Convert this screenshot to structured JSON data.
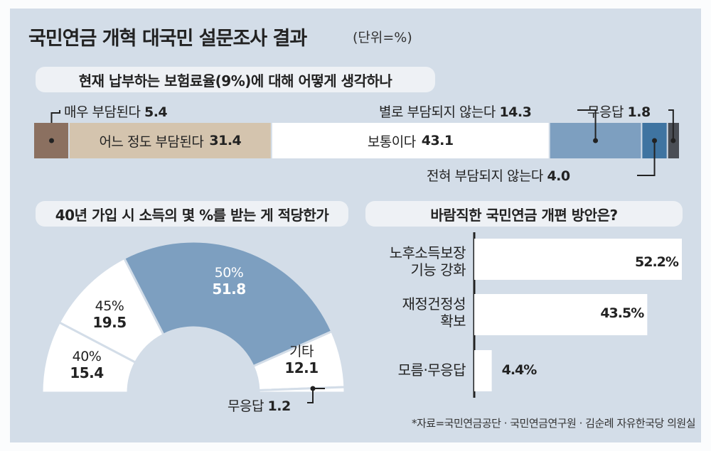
{
  "title": "국민연금 개혁 대국민 설문조사 결과",
  "unit": "(단위=%)",
  "source": "*자료=국민연금공단 · 국민연금연구원 · 김순례 자유한국당 의원실",
  "colors": {
    "panel_bg": "#d3dde8",
    "very_burden": "#8b7060",
    "somewhat_burden": "#d4c4ae",
    "normal": "#ffffff",
    "not_much": "#7d9fc0",
    "not_at_all": "#3f74a1",
    "no_answer": "#4a4e55",
    "donut_highlight": "#7d9fc0",
    "donut_base": "#ffffff"
  },
  "chart_data": [
    {
      "type": "bar",
      "orientation": "horizontal-stacked",
      "title": "현재 납부하는 보험료율(9%)에 대해 어떻게 생각하나",
      "segments": [
        {
          "label": "매우 부담된다",
          "value": 5.4,
          "value_text": "5.4"
        },
        {
          "label": "어느 정도 부담된다",
          "value": 31.4,
          "value_text": "31.4"
        },
        {
          "label": "보통이다",
          "value": 43.1,
          "value_text": "43.1"
        },
        {
          "label": "별로 부담되지 않는다",
          "value": 14.3,
          "value_text": "14.3"
        },
        {
          "label": "전혀 부담되지 않는다",
          "value": 4.0,
          "value_text": "4.0"
        },
        {
          "label": "무응답",
          "value": 1.8,
          "value_text": "1.8"
        }
      ]
    },
    {
      "type": "pie",
      "style": "half-donut",
      "title": "40년 가입 시 소득의 몇 %를 받는 게 적당한가",
      "slices": [
        {
          "label": "40%",
          "value": 15.4,
          "value_text": "15.4"
        },
        {
          "label": "45%",
          "value": 19.5,
          "value_text": "19.5"
        },
        {
          "label": "50%",
          "value": 51.8,
          "value_text": "51.8"
        },
        {
          "label": "기타",
          "value": 12.1,
          "value_text": "12.1"
        },
        {
          "label": "무응답",
          "value": 1.2,
          "value_text": "1.2"
        }
      ]
    },
    {
      "type": "bar",
      "orientation": "horizontal",
      "title": "바람직한 국민연금 개편 방안은?",
      "categories": [
        [
          "노후소득보장",
          "기능 강화"
        ],
        [
          "재정건정성",
          "확보"
        ],
        [
          "모름·무응답"
        ]
      ],
      "values": [
        52.2,
        43.5,
        4.4
      ],
      "value_texts": [
        "52.2%",
        "43.5%",
        "4.4%"
      ],
      "xlim": [
        0,
        60
      ]
    }
  ]
}
